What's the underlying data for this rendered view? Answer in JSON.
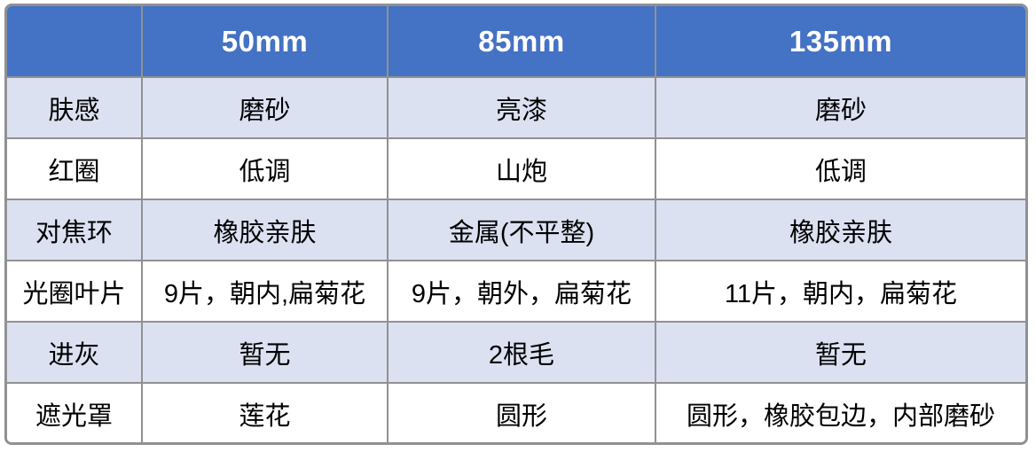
{
  "table": {
    "columns": [
      "",
      "50mm",
      "85mm",
      "135mm"
    ],
    "rows": [
      {
        "label": "肤感",
        "values": [
          "磨砂",
          "亮漆",
          "磨砂"
        ]
      },
      {
        "label": "红圈",
        "values": [
          "低调",
          "山炮",
          "低调"
        ]
      },
      {
        "label": "对焦环",
        "values": [
          "橡胶亲肤",
          "金属(不平整)",
          "橡胶亲肤"
        ]
      },
      {
        "label": "光圈叶片",
        "values": [
          "9片，朝内,扁菊花",
          "9片，朝外，扁菊花",
          "11片，朝内，扁菊花"
        ]
      },
      {
        "label": "进灰",
        "values": [
          "暂无",
          "2根毛",
          "暂无"
        ]
      },
      {
        "label": "遮光罩",
        "values": [
          "莲花",
          "圆形",
          "圆形，橡胶包边，内部磨砂"
        ]
      }
    ]
  },
  "chart_data": {
    "type": "table",
    "title": "",
    "columns": [
      "",
      "50mm",
      "85mm",
      "135mm"
    ],
    "cells": [
      [
        "肤感",
        "磨砂",
        "亮漆",
        "磨砂"
      ],
      [
        "红圈",
        "低调",
        "山炮",
        "低调"
      ],
      [
        "对焦环",
        "橡胶亲肤",
        "金属(不平整)",
        "橡胶亲肤"
      ],
      [
        "光圈叶片",
        "9片，朝内,扁菊花",
        "9片，朝外，扁菊花",
        "11片，朝内，扁菊花"
      ],
      [
        "进灰",
        "暂无",
        "2根毛",
        "暂无"
      ],
      [
        "遮光罩",
        "莲花",
        "圆形",
        "圆形，橡胶包边，内部磨砂"
      ]
    ]
  },
  "colors": {
    "header_bg": "#4472C4",
    "header_text": "#FFFFFF",
    "row_alt_bg": "#DCE1F2",
    "row_plain_bg": "#FFFFFF",
    "border": "#919191",
    "body_text": "#000000"
  }
}
